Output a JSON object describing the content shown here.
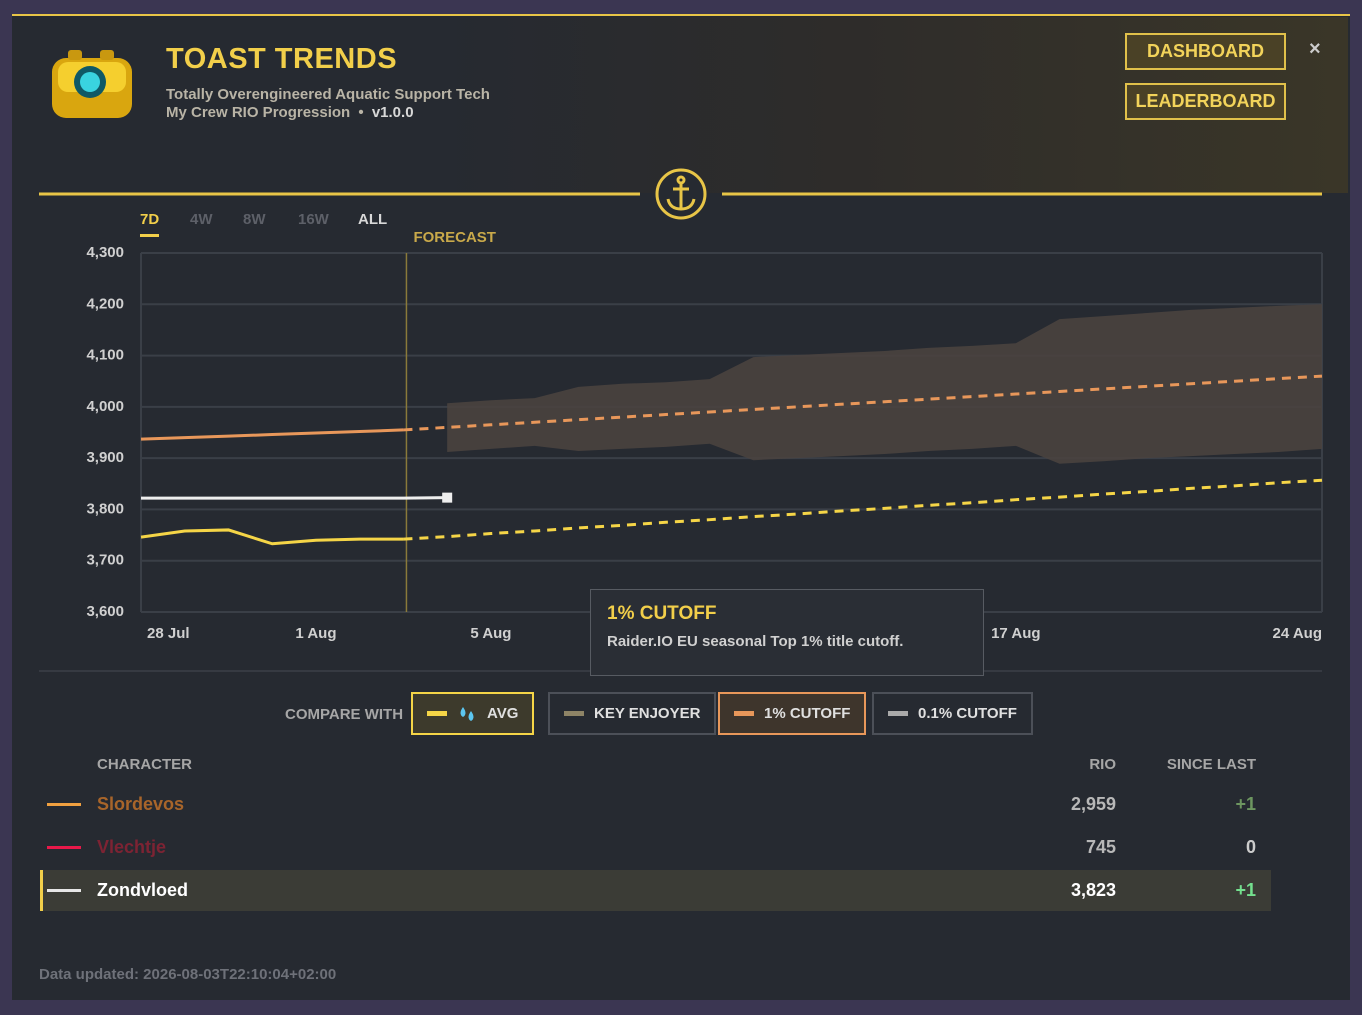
{
  "header": {
    "title": "TOAST TRENDS",
    "subtitle": "Totally Overengineered Aquatic Support Tech",
    "subline": "My Crew RIO Progression",
    "separator": "•",
    "version": "v1.0.0"
  },
  "nav": {
    "buttons": [
      "DASHBOARD",
      "LEADERBOARD"
    ],
    "close": "×"
  },
  "tabs": {
    "items": [
      "7D",
      "4W",
      "8W",
      "16W",
      "ALL"
    ],
    "active": 0
  },
  "chart_data": {
    "type": "line",
    "forecast_label": "FORECAST",
    "categories": [
      "28 Jul",
      null,
      null,
      null,
      "1 Aug",
      null,
      null,
      null,
      "5 Aug",
      null,
      null,
      null,
      null,
      null,
      null,
      null,
      null,
      null,
      null,
      null,
      "17 Aug",
      null,
      null,
      null,
      null,
      null,
      null,
      "24 Aug"
    ],
    "ylim": [
      3600,
      4300
    ],
    "yticks": [
      {
        "value": 3600,
        "label": "3,600"
      },
      {
        "value": 3700,
        "label": "3,700"
      },
      {
        "value": 3800,
        "label": "3,800"
      },
      {
        "value": 3900,
        "label": "3,900"
      },
      {
        "value": 4000,
        "label": "4,000"
      },
      {
        "value": 4100,
        "label": "4,100"
      },
      {
        "value": 4200,
        "label": "4,200"
      },
      {
        "value": 4300,
        "label": "4,300"
      }
    ],
    "grid": true,
    "band": {
      "color": "#4a433f",
      "low": [
        null,
        null,
        null,
        null,
        null,
        null,
        null,
        3912,
        3918,
        3924,
        3914,
        3918,
        3922,
        3928,
        3896,
        3900,
        3904,
        3908,
        3914,
        3918,
        3924,
        3889,
        3894,
        3900,
        3904,
        3908,
        3912,
        3918
      ],
      "high": [
        null,
        null,
        null,
        null,
        null,
        null,
        null,
        4007,
        4013,
        4017,
        4039,
        4045,
        4048,
        4054,
        4097,
        4101,
        4105,
        4109,
        4115,
        4119,
        4124,
        4171,
        4177,
        4183,
        4189,
        4193,
        4197,
        4200
      ]
    },
    "series": [
      {
        "color": "#eeeeee",
        "end_marker": true,
        "values": [
          3822,
          3822,
          3822,
          3822,
          3822,
          3822,
          3822,
          3823,
          null,
          null,
          null,
          null,
          null,
          null,
          null,
          null,
          null,
          null,
          null,
          null,
          null,
          null,
          null,
          null,
          null,
          null,
          null,
          null
        ]
      },
      {
        "color": "#f5d547",
        "values": [
          3746,
          3758,
          3760,
          3733,
          3740,
          3742,
          3742,
          null,
          null,
          null,
          null,
          null,
          null,
          null,
          null,
          null,
          null,
          null,
          null,
          null,
          null,
          null,
          null,
          null,
          null,
          null,
          null,
          null
        ]
      },
      {
        "color": "#f5d547",
        "dashed": true,
        "values": [
          null,
          null,
          null,
          null,
          null,
          null,
          3742,
          3747,
          3753,
          3758,
          3764,
          3769,
          3775,
          3780,
          3786,
          3791,
          3797,
          3802,
          3808,
          3813,
          3819,
          3824,
          3830,
          3835,
          3841,
          3846,
          3852,
          3857
        ]
      },
      {
        "color": "#e8975a",
        "values": [
          3937,
          3940,
          3943,
          3946,
          3949,
          3952,
          3955,
          null,
          null,
          null,
          null,
          null,
          null,
          null,
          null,
          null,
          null,
          null,
          null,
          null,
          null,
          null,
          null,
          null,
          null,
          null,
          null,
          null
        ]
      },
      {
        "color": "#e8975a",
        "dashed": true,
        "values": [
          null,
          null,
          null,
          null,
          null,
          null,
          3955,
          3960,
          3965,
          3970,
          3975,
          3980,
          3985,
          3990,
          3995,
          4000,
          4005,
          4010,
          4015,
          4020,
          4025,
          4030,
          4035,
          4040,
          4045,
          4050,
          4055,
          4060
        ]
      }
    ]
  },
  "tooltip": {
    "title": "1% CUTOFF",
    "text": "Raider.IO EU seasonal Top 1% title cutoff."
  },
  "compare": {
    "label": "COMPARE WITH",
    "options": [
      {
        "label": "AVG",
        "color": "#f5d547",
        "active": true
      },
      {
        "label": "KEY ENJOYER",
        "color": "#8e8466",
        "active": false
      },
      {
        "label": "1% CUTOFF",
        "color": "#e8975a",
        "active": true
      },
      {
        "label": "0.1% CUTOFF",
        "color": "#aaaaaa",
        "active": false
      }
    ]
  },
  "table": {
    "headers": [
      "CHARACTER",
      "RIO",
      "SINCE LAST"
    ],
    "rows": [
      {
        "name": "Slordevos",
        "color": "#f0a040",
        "name_color": "#a8652a",
        "rio": "2,959",
        "change": "+1",
        "change_color": "#6d9660",
        "highlighted": false
      },
      {
        "name": "Vlechtje",
        "color": "#e8194a",
        "name_color": "#7d2333",
        "rio": "745",
        "change": "0",
        "change_color": "#cccccc",
        "highlighted": false
      },
      {
        "name": "Zondvloed",
        "color": "#e6e6e6",
        "name_color": "#ffffff",
        "rio": "3,823",
        "change": "+1",
        "change_color": "#74e08e",
        "highlighted": true
      }
    ]
  },
  "footer": "Data updated: 2026-08-03T22:10:04+02:00"
}
